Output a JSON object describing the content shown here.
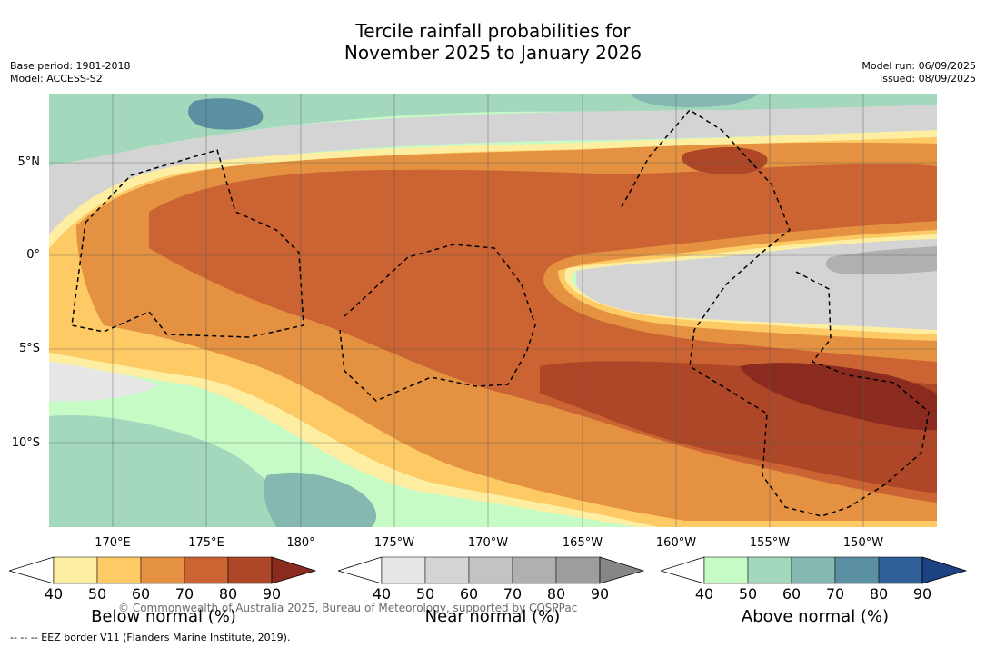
{
  "title": {
    "line1": "Tercile rainfall probabilities for",
    "line2": "November 2025 to January 2026"
  },
  "meta_left": {
    "base_period": "Base period: 1981-2018",
    "model": "Model: ACCESS-S2"
  },
  "meta_right": {
    "model_run": "Model run: 06/09/2025",
    "issued": "Issued: 08/09/2025"
  },
  "map": {
    "lat_labels": [
      "5°N",
      "0°",
      "5°S",
      "10°S"
    ],
    "lon_labels": [
      "170°E",
      "175°E",
      "180°",
      "175°W",
      "170°W",
      "165°W",
      "160°W",
      "155°W",
      "150°W"
    ],
    "copyright": "© Commonwealth of Australia 2025, Bureau of Meteorology, supported by COSPPac",
    "colors": {
      "below": [
        "#fdeea1",
        "#fdca65",
        "#e49241",
        "#cc6332",
        "#ad4727",
        "#8b2b1f"
      ],
      "near": [
        "#e7e7e7",
        "#d4d4d4",
        "#c3c3c3",
        "#b0b0b0",
        "#9d9d9d",
        "#868686"
      ],
      "above": [
        "#c6fbc6",
        "#a4d8bd",
        "#85b8b0",
        "#5b8fa2",
        "#2f6098",
        "#1d4383"
      ],
      "eez_border": "#000000",
      "gridline": "#555555"
    }
  },
  "colorbars": [
    {
      "title": "Below normal (%)",
      "ticks": [
        "40",
        "50",
        "60",
        "70",
        "80",
        "90"
      ]
    },
    {
      "title": "Near normal (%)",
      "ticks": [
        "40",
        "50",
        "60",
        "70",
        "80",
        "90"
      ]
    },
    {
      "title": "Above normal (%)",
      "ticks": [
        "40",
        "50",
        "60",
        "70",
        "80",
        "90"
      ]
    }
  ],
  "footnote": "-- -- -- EEZ border V11 (Flanders Marine Institute, 2019)."
}
